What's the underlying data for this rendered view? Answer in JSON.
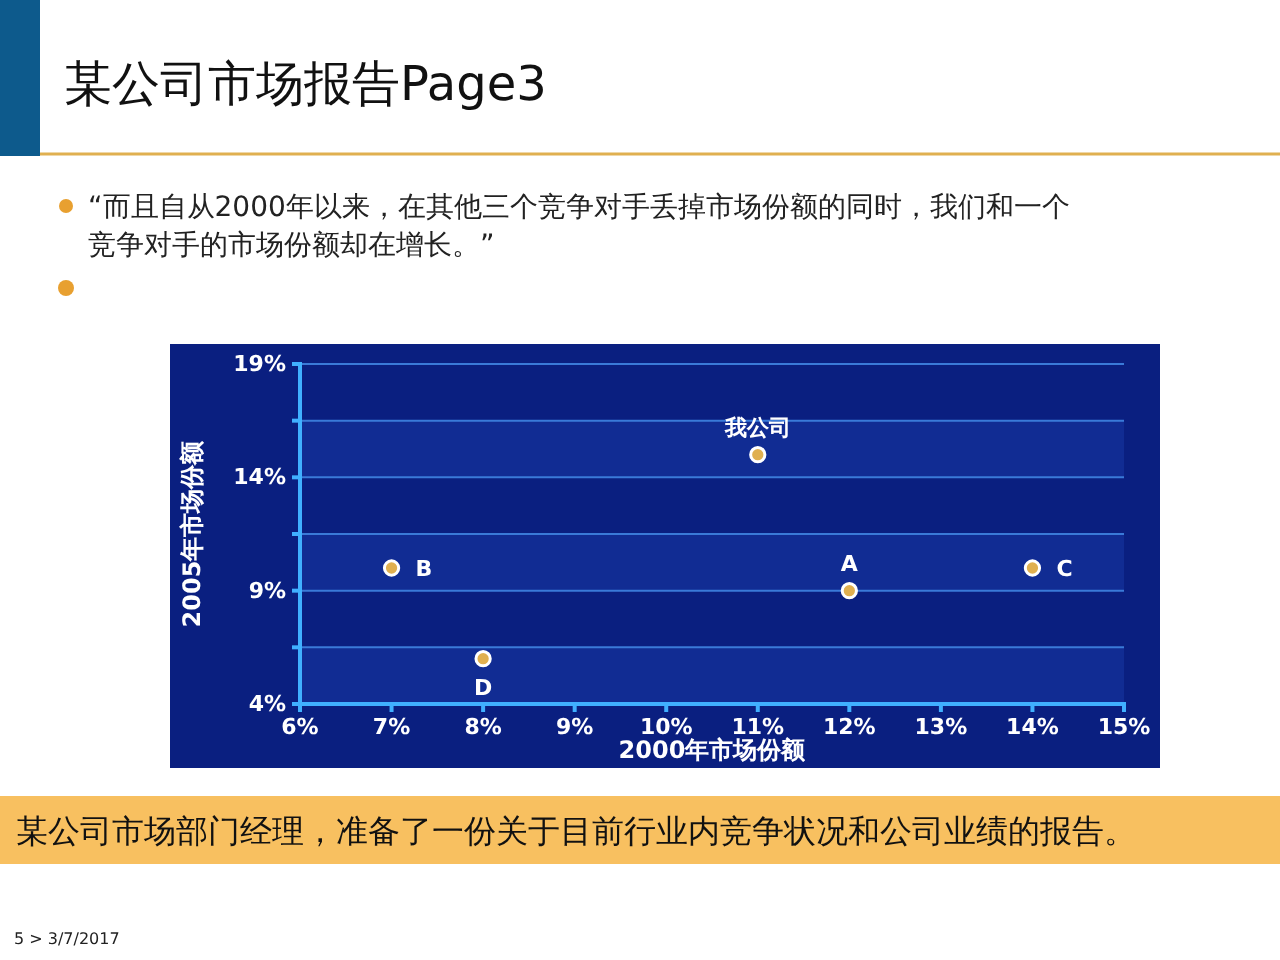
{
  "chart_data": {
    "type": "scatter",
    "title": "某公司市场报告Page3",
    "subtitle": "“而且自从2000年以来，在其他三个竞争对手丢掉市场份额的同时，我们和一个竞争对手的市场份额却在增长。”",
    "xlabel": "2000年市场份额",
    "ylabel": "2005年市场份额",
    "x": [
      7,
      8,
      11,
      12,
      14
    ],
    "series": [
      {
        "color": "#e0b050",
        "values": [
          10,
          6,
          15,
          9,
          10
        ]
      }
    ],
    "marker": "circle",
    "xlim": [
      6,
      15
    ],
    "xticks": [
      {
        "value": 6,
        "label": "6%"
      },
      {
        "value": 7,
        "label": "7%"
      },
      {
        "value": 8,
        "label": "8%"
      },
      {
        "value": 9,
        "label": "9%"
      },
      {
        "value": 10,
        "label": "10%"
      },
      {
        "value": 11,
        "label": "11%"
      },
      {
        "value": 12,
        "label": "12%"
      },
      {
        "value": 13,
        "label": "13%"
      },
      {
        "value": 14,
        "label": "14%"
      },
      {
        "value": 15,
        "label": "15%"
      }
    ],
    "ylim": [
      4,
      19
    ],
    "yticks": [
      {
        "value": 4,
        "label": "4%"
      },
      {
        "value": 6.5,
        "label": null
      },
      {
        "value": 9,
        "label": "9%"
      },
      {
        "value": 11.5,
        "label": null
      },
      {
        "value": 14,
        "label": "14%"
      },
      {
        "value": 16.5,
        "label": null
      },
      {
        "value": 19,
        "label": "19%"
      }
    ],
    "grid": "y",
    "bands": [
      {
        "axis": "y",
        "from": 4,
        "to": 6.5,
        "color": "#1535a0"
      },
      {
        "axis": "y",
        "from": 9,
        "to": 11.5,
        "color": "#1535a0"
      },
      {
        "axis": "y",
        "from": 14,
        "to": 16.5,
        "color": "#1535a0"
      }
    ],
    "annotations": [
      {
        "text": "B",
        "x": 7,
        "y": 10
      },
      {
        "text": "D",
        "x": 8,
        "y": 6
      },
      {
        "text": "我公司",
        "x": 11,
        "y": 15
      },
      {
        "text": "A",
        "x": 12,
        "y": 9
      },
      {
        "text": "C",
        "x": 14,
        "y": 10
      },
      "某公司市场部门经理，准备了一份关于目前行业内竞争状况和公司业绩的报告。",
      "5 > 3/7/2017"
    ]
  }
}
